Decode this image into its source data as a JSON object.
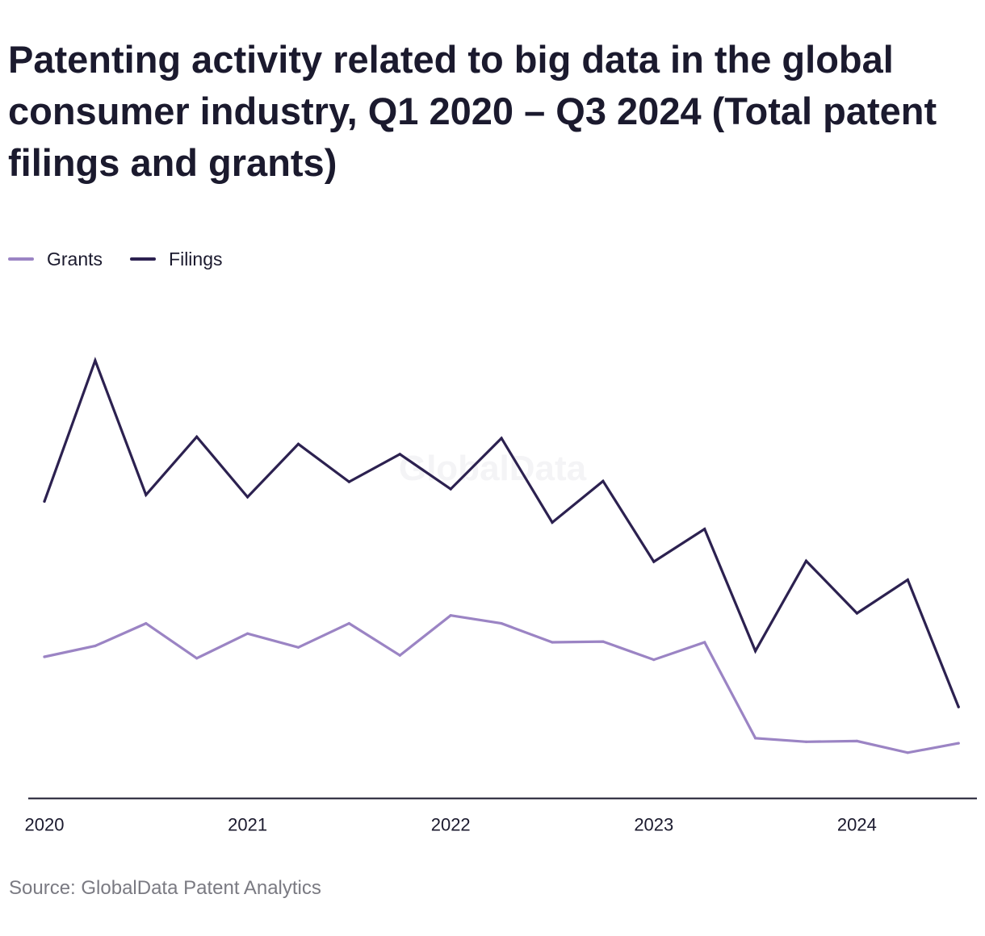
{
  "title": "Patenting activity related to big data in the global consumer industry, Q1 2020 – Q3 2024 (Total patent filings and grants)",
  "source": "Source: GlobalData Patent Analytics",
  "watermark": "GlobalData",
  "colors": {
    "grants": "#9b84c4",
    "filings": "#2c2150",
    "axis": "#1b1a2e"
  },
  "legend": [
    {
      "label": "Grants",
      "color": "#9b84c4"
    },
    {
      "label": "Filings",
      "color": "#2c2150"
    }
  ],
  "chart_data": {
    "type": "line",
    "title": "Patenting activity related to big data in the global consumer industry, Q1 2020 – Q3 2024 (Total patent filings and grants)",
    "x": [
      "Q1 2020",
      "Q2 2020",
      "Q3 2020",
      "Q4 2020",
      "Q1 2021",
      "Q2 2021",
      "Q3 2021",
      "Q4 2021",
      "Q1 2022",
      "Q2 2022",
      "Q3 2022",
      "Q4 2022",
      "Q1 2023",
      "Q2 2023",
      "Q3 2023",
      "Q4 2023",
      "Q1 2024",
      "Q2 2024",
      "Q3 2024"
    ],
    "x_tick_labels": [
      "2020",
      "2021",
      "2022",
      "2023",
      "2024"
    ],
    "x_tick_index": [
      0,
      4,
      8,
      12,
      16
    ],
    "ylim": [
      0,
      600
    ],
    "y_axis_shown": false,
    "grid": false,
    "legend_position": "top-left",
    "series": [
      {
        "name": "Grants",
        "color": "#9b84c4",
        "values": [
          195,
          210,
          241,
          193,
          227,
          208,
          241,
          197,
          252,
          241,
          215,
          216,
          191,
          215,
          83,
          78,
          79,
          63,
          76
        ]
      },
      {
        "name": "Filings",
        "color": "#2c2150",
        "values": [
          409,
          603,
          418,
          498,
          415,
          488,
          436,
          474,
          426,
          496,
          380,
          437,
          326,
          371,
          203,
          327,
          255,
          301,
          126
        ]
      }
    ]
  }
}
